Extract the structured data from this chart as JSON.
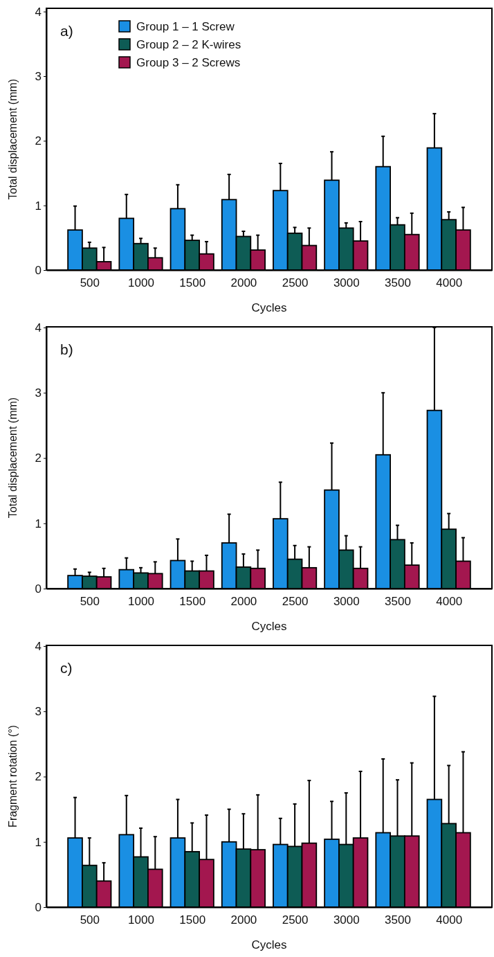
{
  "chart_data": [
    {
      "type": "bar",
      "title": "a)",
      "xlabel": "Cycles",
      "ylabel": "Total displacement (mm)",
      "categories": [
        "500",
        "1000",
        "1500",
        "2000",
        "2500",
        "3000",
        "3500",
        "4000"
      ],
      "ylim": [
        0,
        4.05
      ],
      "yticks": [
        0,
        1,
        2,
        3,
        4
      ],
      "legend": "top left",
      "grid": false,
      "series": [
        {
          "name": "Group 1 – 1 Screw",
          "color": "#1a8fe3",
          "values": [
            0.62,
            0.8,
            0.95,
            1.09,
            1.23,
            1.39,
            1.6,
            1.89
          ],
          "errors": [
            [
              0.62,
              0.99
            ],
            [
              0.8,
              1.17
            ],
            [
              0.95,
              1.32
            ],
            [
              1.09,
              1.48
            ],
            [
              1.23,
              1.65
            ],
            [
              1.39,
              1.83
            ],
            [
              1.6,
              2.07
            ],
            [
              1.89,
              2.42
            ]
          ]
        },
        {
          "name": "Group 2 – 2 K-wires",
          "color": "#0e5c55",
          "values": [
            0.34,
            0.41,
            0.46,
            0.52,
            0.57,
            0.65,
            0.7,
            0.78
          ],
          "errors": [
            [
              0.34,
              0.43
            ],
            [
              0.41,
              0.49
            ],
            [
              0.46,
              0.54
            ],
            [
              0.52,
              0.6
            ],
            [
              0.57,
              0.66
            ],
            [
              0.65,
              0.73
            ],
            [
              0.7,
              0.81
            ],
            [
              0.78,
              0.9
            ]
          ]
        },
        {
          "name": "Group 3 – 2 Screws",
          "color": "#a3174f",
          "values": [
            0.13,
            0.19,
            0.25,
            0.31,
            0.38,
            0.45,
            0.55,
            0.62
          ],
          "errors": [
            [
              0.13,
              0.35
            ],
            [
              0.19,
              0.34
            ],
            [
              0.25,
              0.44
            ],
            [
              0.31,
              0.54
            ],
            [
              0.38,
              0.65
            ],
            [
              0.45,
              0.75
            ],
            [
              0.55,
              0.88
            ],
            [
              0.62,
              0.97
            ]
          ]
        }
      ]
    },
    {
      "type": "bar",
      "title": "b)",
      "xlabel": "Cycles",
      "ylabel": "Total displacement (mm)",
      "categories": [
        "500",
        "1000",
        "1500",
        "2000",
        "2500",
        "3000",
        "3500",
        "4000"
      ],
      "ylim": [
        0,
        4.01
      ],
      "yticks": [
        0,
        1,
        2,
        3,
        4
      ],
      "grid": false,
      "series": [
        {
          "color": "#1a8fe3",
          "values": [
            0.2,
            0.29,
            0.43,
            0.7,
            1.07,
            1.51,
            2.05,
            2.73
          ],
          "errors": [
            [
              0.2,
              0.3
            ],
            [
              0.29,
              0.47
            ],
            [
              0.43,
              0.76
            ],
            [
              0.7,
              1.14
            ],
            [
              1.07,
              1.63
            ],
            [
              1.51,
              2.23
            ],
            [
              2.05,
              3.0
            ],
            [
              2.73,
              4.0
            ]
          ]
        },
        {
          "color": "#0e5c55",
          "values": [
            0.19,
            0.24,
            0.27,
            0.33,
            0.45,
            0.59,
            0.75,
            0.91
          ],
          "errors": [
            [
              0.19,
              0.25
            ],
            [
              0.24,
              0.32
            ],
            [
              0.27,
              0.42
            ],
            [
              0.33,
              0.53
            ],
            [
              0.45,
              0.66
            ],
            [
              0.59,
              0.81
            ],
            [
              0.75,
              0.97
            ],
            [
              0.91,
              1.15
            ]
          ]
        },
        {
          "color": "#a3174f",
          "values": [
            0.18,
            0.23,
            0.27,
            0.31,
            0.32,
            0.31,
            0.36,
            0.42
          ],
          "errors": [
            [
              0.18,
              0.31
            ],
            [
              0.23,
              0.41
            ],
            [
              0.27,
              0.51
            ],
            [
              0.31,
              0.59
            ],
            [
              0.32,
              0.64
            ],
            [
              0.31,
              0.64
            ],
            [
              0.36,
              0.7
            ],
            [
              0.42,
              0.78
            ]
          ]
        }
      ]
    },
    {
      "type": "bar",
      "title": "c)",
      "xlabel": "Cycles",
      "ylabel": "Fragment rotation (°)",
      "categories": [
        "500",
        "1000",
        "1500",
        "2000",
        "2500",
        "3000",
        "3500",
        "4000"
      ],
      "ylim": [
        0,
        4.01
      ],
      "yticks": [
        0,
        1,
        2,
        3,
        4
      ],
      "grid": false,
      "series": [
        {
          "color": "#1a8fe3",
          "values": [
            1.06,
            1.11,
            1.06,
            1.0,
            0.96,
            1.04,
            1.14,
            1.65
          ],
          "errors": [
            [
              1.06,
              1.68
            ],
            [
              1.11,
              1.71
            ],
            [
              1.06,
              1.65
            ],
            [
              1.0,
              1.5
            ],
            [
              0.96,
              1.36
            ],
            [
              1.04,
              1.62
            ],
            [
              1.14,
              2.27
            ],
            [
              1.65,
              3.23
            ]
          ]
        },
        {
          "color": "#0e5c55",
          "values": [
            0.64,
            0.77,
            0.85,
            0.89,
            0.93,
            0.96,
            1.09,
            1.28
          ],
          "errors": [
            [
              0.64,
              1.06
            ],
            [
              0.77,
              1.21
            ],
            [
              0.85,
              1.29
            ],
            [
              0.89,
              1.43
            ],
            [
              0.93,
              1.58
            ],
            [
              0.96,
              1.75
            ],
            [
              1.09,
              1.95
            ],
            [
              1.28,
              2.17
            ]
          ]
        },
        {
          "color": "#a3174f",
          "values": [
            0.4,
            0.58,
            0.73,
            0.88,
            0.98,
            1.06,
            1.09,
            1.14
          ],
          "errors": [
            [
              0.4,
              0.68
            ],
            [
              0.58,
              1.08
            ],
            [
              0.73,
              1.41
            ],
            [
              0.88,
              1.72
            ],
            [
              0.98,
              1.94
            ],
            [
              1.06,
              2.08
            ],
            [
              1.09,
              2.21
            ],
            [
              1.14,
              2.38
            ]
          ]
        }
      ]
    }
  ]
}
